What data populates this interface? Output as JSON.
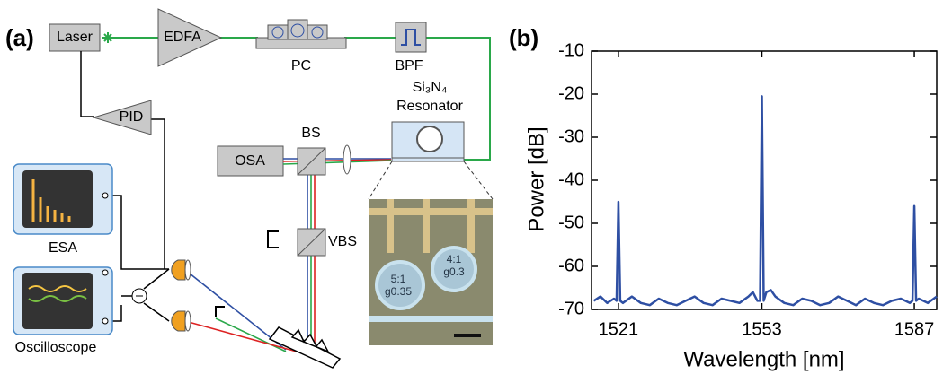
{
  "diagram": {
    "panel": "(a)",
    "laser": "Laser",
    "edfa": "EDFA",
    "pc": "PC",
    "bpf": "BPF",
    "resonator_material": "Si₃N₄",
    "resonator": "Resonator",
    "pid": "PID",
    "osa": "OSA",
    "bs": "BS",
    "vbs": "VBS",
    "esa": "ESA",
    "oscilloscope": "Oscilloscope",
    "inset_labels": [
      "5:1",
      "g0.35",
      "4:1",
      "g0.3"
    ]
  },
  "chart_data": {
    "type": "line",
    "panel": "(b)",
    "xlabel": "Wavelength [nm]",
    "ylabel": "Power [dB]",
    "x": [
      1515.5,
      1517,
      1518.5,
      1520,
      1520.6,
      1521,
      1521.4,
      1522,
      1524,
      1526,
      1528,
      1530,
      1532,
      1534,
      1536,
      1538,
      1540,
      1542,
      1544,
      1546,
      1548,
      1550,
      1551,
      1552,
      1552.6,
      1553,
      1553.4,
      1554,
      1555,
      1556,
      1558,
      1560,
      1562,
      1564,
      1566,
      1568,
      1570,
      1572,
      1574,
      1576,
      1578,
      1580,
      1582,
      1584,
      1586,
      1586.6,
      1587,
      1587.4,
      1588,
      1590,
      1592
    ],
    "series": [
      {
        "color": "#2e4fa3",
        "values": [
          -68,
          -67,
          -68.5,
          -67.5,
          -68,
          -45,
          -68,
          -68.5,
          -67,
          -68.5,
          -69,
          -67.5,
          -68.5,
          -69,
          -68,
          -67,
          -68.5,
          -69,
          -67.5,
          -68,
          -68.5,
          -67,
          -66,
          -68,
          -68,
          -20.5,
          -68,
          -66,
          -65.5,
          -67,
          -68.5,
          -69,
          -67.5,
          -68,
          -69,
          -68.5,
          -67,
          -68,
          -69,
          -67.5,
          -68.5,
          -69,
          -68,
          -67.5,
          -68.5,
          -68,
          -46,
          -68,
          -67.5,
          -68.5,
          -67
        ]
      }
    ],
    "xlim": [
      1515,
      1592
    ],
    "xticks": [
      1521,
      1553,
      1587
    ],
    "ylim": [
      -70,
      -10
    ],
    "yticks": [
      -10,
      -20,
      -30,
      -40,
      -50,
      -60,
      -70
    ]
  }
}
